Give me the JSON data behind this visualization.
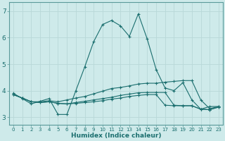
{
  "xlabel": "Humidex (Indice chaleur)",
  "xlim": [
    -0.5,
    23.5
  ],
  "ylim": [
    2.7,
    7.35
  ],
  "yticks": [
    3,
    4,
    5,
    6,
    7
  ],
  "xticks": [
    0,
    1,
    2,
    3,
    4,
    5,
    6,
    7,
    8,
    9,
    10,
    11,
    12,
    13,
    14,
    15,
    16,
    17,
    18,
    19,
    20,
    21,
    22,
    23
  ],
  "bg_color": "#ceeaea",
  "grid_color": "#b8d8d8",
  "line_color": "#1a6e6e",
  "series": [
    {
      "x": [
        0,
        1,
        2,
        3,
        4,
        5,
        6,
        7,
        8,
        9,
        10,
        11,
        12,
        13,
        14,
        15,
        16,
        17,
        18,
        19,
        20,
        21,
        22,
        23
      ],
      "y": [
        3.9,
        3.7,
        3.5,
        3.6,
        3.7,
        3.1,
        3.1,
        4.0,
        4.9,
        5.85,
        6.5,
        6.65,
        6.45,
        6.05,
        6.9,
        5.95,
        4.8,
        4.1,
        4.0,
        4.3,
        3.65,
        3.3,
        3.4,
        3.4
      ]
    },
    {
      "x": [
        0,
        1,
        2,
        3,
        4,
        5,
        6,
        7,
        8,
        9,
        10,
        11,
        12,
        13,
        14,
        15,
        16,
        17,
        18,
        19,
        20,
        21,
        22,
        23
      ],
      "y": [
        3.85,
        3.72,
        3.58,
        3.58,
        3.62,
        3.58,
        3.65,
        3.72,
        3.78,
        3.88,
        3.98,
        4.08,
        4.12,
        4.18,
        4.25,
        4.28,
        4.28,
        4.32,
        4.35,
        4.38,
        4.38,
        3.65,
        3.32,
        3.4
      ]
    },
    {
      "x": [
        0,
        1,
        2,
        3,
        4,
        5,
        6,
        7,
        8,
        9,
        10,
        11,
        12,
        13,
        14,
        15,
        16,
        17,
        18,
        19,
        20,
        21,
        22,
        23
      ],
      "y": [
        3.85,
        3.72,
        3.58,
        3.55,
        3.58,
        3.52,
        3.5,
        3.55,
        3.6,
        3.65,
        3.7,
        3.75,
        3.82,
        3.87,
        3.92,
        3.93,
        3.93,
        3.93,
        3.45,
        3.43,
        3.43,
        3.3,
        3.28,
        3.38
      ]
    },
    {
      "x": [
        0,
        1,
        2,
        3,
        4,
        5,
        6,
        7,
        8,
        9,
        10,
        11,
        12,
        13,
        14,
        15,
        16,
        17,
        18,
        19,
        20,
        21,
        22,
        23
      ],
      "y": [
        3.85,
        3.72,
        3.58,
        3.55,
        3.58,
        3.52,
        3.5,
        3.52,
        3.55,
        3.58,
        3.62,
        3.68,
        3.72,
        3.78,
        3.82,
        3.85,
        3.85,
        3.45,
        3.43,
        3.43,
        3.43,
        3.3,
        3.28,
        3.38
      ]
    }
  ]
}
